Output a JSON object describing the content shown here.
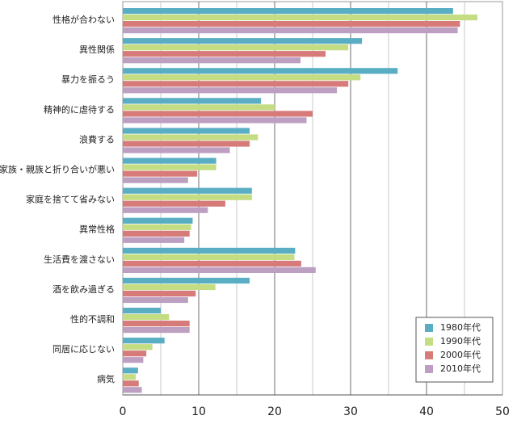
{
  "chart_data": {
    "type": "bar",
    "orientation": "horizontal",
    "title": "",
    "xlabel": "",
    "ylabel": "",
    "xlim": [
      0,
      50
    ],
    "xticks": [
      0,
      10,
      20,
      30,
      40,
      50
    ],
    "grid": true,
    "legend_position": "bottom-right",
    "categories": [
      "性格が合わない",
      "異性関係",
      "暴力を振るう",
      "精神的に虐待する",
      "浪費する",
      "家族・親族と折り合いが悪い",
      "家庭を捨てて省みない",
      "異常性格",
      "生活費を渡さない",
      "酒を飲み過ぎる",
      "性的不調和",
      "同居に応じない",
      "病気"
    ],
    "series": [
      {
        "name": "1980年代",
        "color": "#5aaec4",
        "values": [
          43.5,
          31.5,
          36.2,
          18.2,
          16.7,
          12.3,
          17.0,
          9.2,
          22.7,
          16.7,
          5.0,
          5.5,
          2.0
        ]
      },
      {
        "name": "1990年代",
        "color": "#c4dc82",
        "values": [
          46.7,
          29.7,
          31.3,
          20.0,
          17.8,
          12.3,
          17.0,
          9.0,
          22.6,
          12.2,
          6.1,
          3.9,
          1.7
        ]
      },
      {
        "name": "2000年代",
        "color": "#d77a7a",
        "values": [
          44.4,
          26.7,
          29.7,
          25.0,
          16.7,
          9.8,
          13.5,
          8.8,
          23.5,
          9.6,
          8.8,
          3.1,
          2.1
        ]
      },
      {
        "name": "2010年代",
        "color": "#bd9fc2",
        "values": [
          44.1,
          23.4,
          28.2,
          24.2,
          14.1,
          8.6,
          11.2,
          8.1,
          25.4,
          8.6,
          8.8,
          2.7,
          2.5
        ]
      }
    ]
  }
}
